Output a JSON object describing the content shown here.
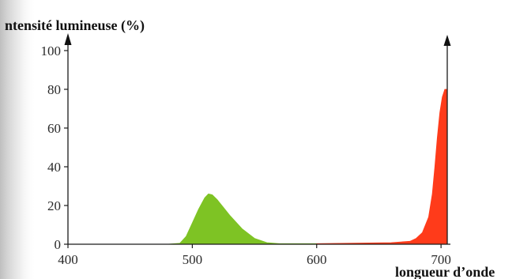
{
  "chart_data": {
    "type": "area",
    "title": "",
    "ylabel": "ntensité lumineuse (%)",
    "xlabel": "longueur d’onde",
    "xlim": [
      400,
      705
    ],
    "ylim": [
      0,
      100
    ],
    "x_ticks": [
      "400",
      "500",
      "600",
      "700"
    ],
    "y_ticks": [
      "0",
      "20",
      "40",
      "60",
      "80",
      "100"
    ],
    "grid": false,
    "series": [
      {
        "color": "#7ec324",
        "x": [
          400,
          480,
          490,
          495,
          500,
          505,
          510,
          513,
          516,
          520,
          525,
          530,
          540,
          550,
          560,
          570,
          600
        ],
        "y": [
          0,
          0,
          0.5,
          4,
          11,
          18,
          24,
          26,
          25.5,
          23,
          19,
          15,
          8,
          3,
          0.8,
          0.3,
          0.3
        ]
      },
      {
        "color": "#ff3b1a",
        "x": [
          600,
          660,
          675,
          680,
          685,
          690,
          693,
          695,
          697,
          699,
          701,
          703,
          705
        ],
        "y": [
          0.3,
          0.8,
          1.5,
          3,
          6,
          14,
          26,
          40,
          55,
          68,
          76,
          80,
          80
        ]
      }
    ]
  }
}
